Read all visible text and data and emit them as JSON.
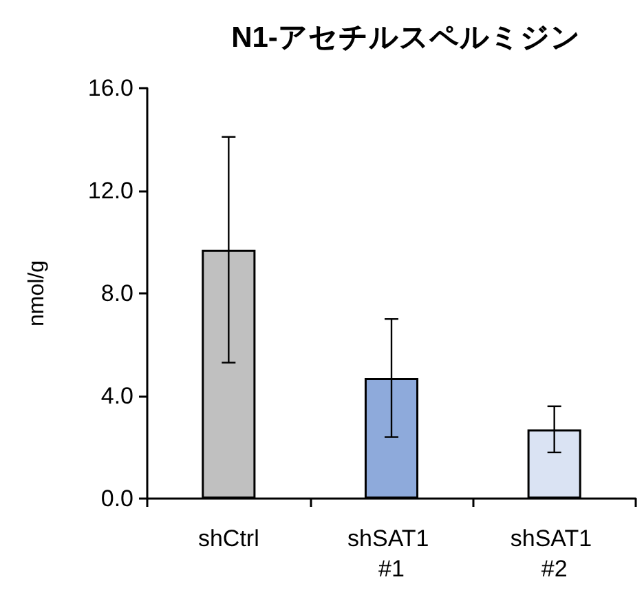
{
  "chart_data": {
    "type": "bar",
    "title": "N1-アセチルスペルミジン",
    "ylabel": "nmol/g",
    "categories": [
      "shCtrl",
      "shSAT1 #1",
      "shSAT1 #2"
    ],
    "values": [
      9.7,
      4.7,
      2.7
    ],
    "colors": [
      "#c0c0c0",
      "#8eaadb",
      "#dae3f3"
    ],
    "errors": [
      4.4,
      2.3,
      0.9
    ],
    "ylim": [
      0,
      16
    ],
    "yticks": [
      {
        "value": 0,
        "label": "0.0"
      },
      {
        "value": 4,
        "label": "4.0"
      },
      {
        "value": 8,
        "label": "8.0"
      },
      {
        "value": 12,
        "label": "12.0"
      },
      {
        "value": 16,
        "label": "16.0"
      }
    ],
    "grid": false
  }
}
